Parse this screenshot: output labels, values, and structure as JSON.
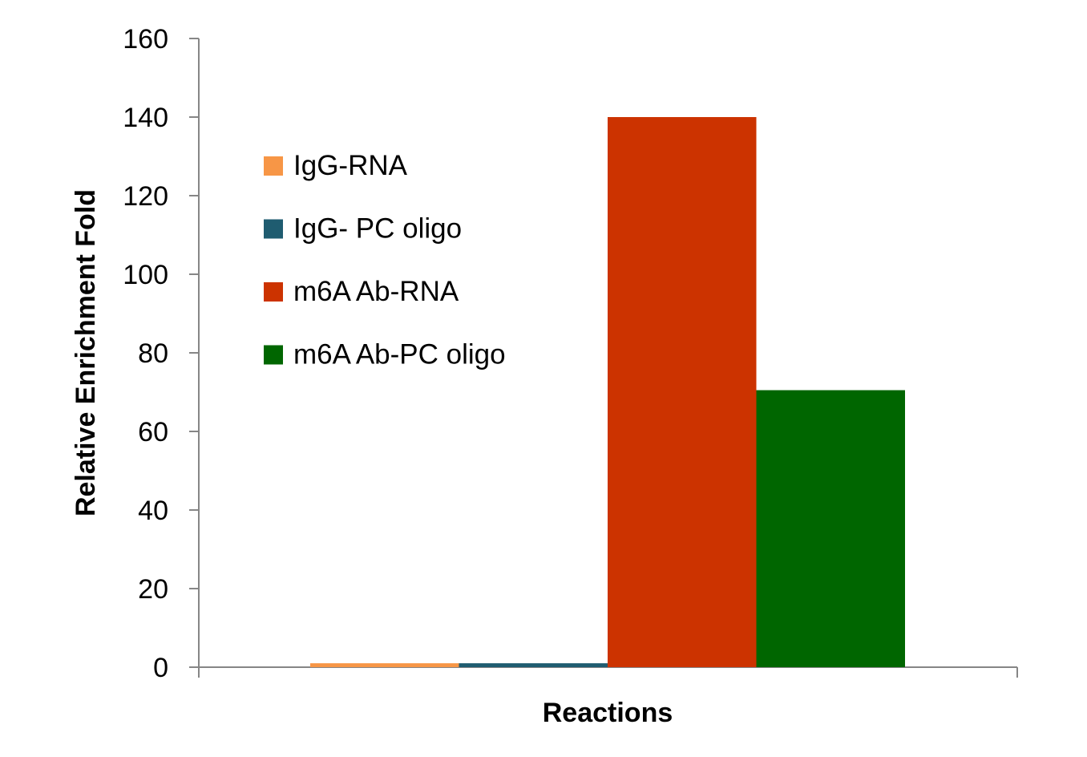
{
  "chart_data": {
    "type": "bar",
    "title": "",
    "xlabel": "Reactions",
    "ylabel": "Relative Enrichment Fold",
    "ylim": [
      0,
      160
    ],
    "yticks": [
      0,
      20,
      40,
      60,
      80,
      100,
      120,
      140,
      160
    ],
    "categories": [
      ""
    ],
    "legend_position": "top-left",
    "grid": false,
    "series": [
      {
        "name": "IgG-RNA",
        "values": [
          1
        ],
        "color": "#F79646"
      },
      {
        "name": "IgG- PC oligo",
        "values": [
          1
        ],
        "color": "#1F5C70"
      },
      {
        "name": "m6A Ab-RNA",
        "values": [
          140
        ],
        "color": "#CC3300"
      },
      {
        "name": "m6A Ab-PC oligo",
        "values": [
          70.5
        ],
        "color": "#006600"
      }
    ]
  }
}
